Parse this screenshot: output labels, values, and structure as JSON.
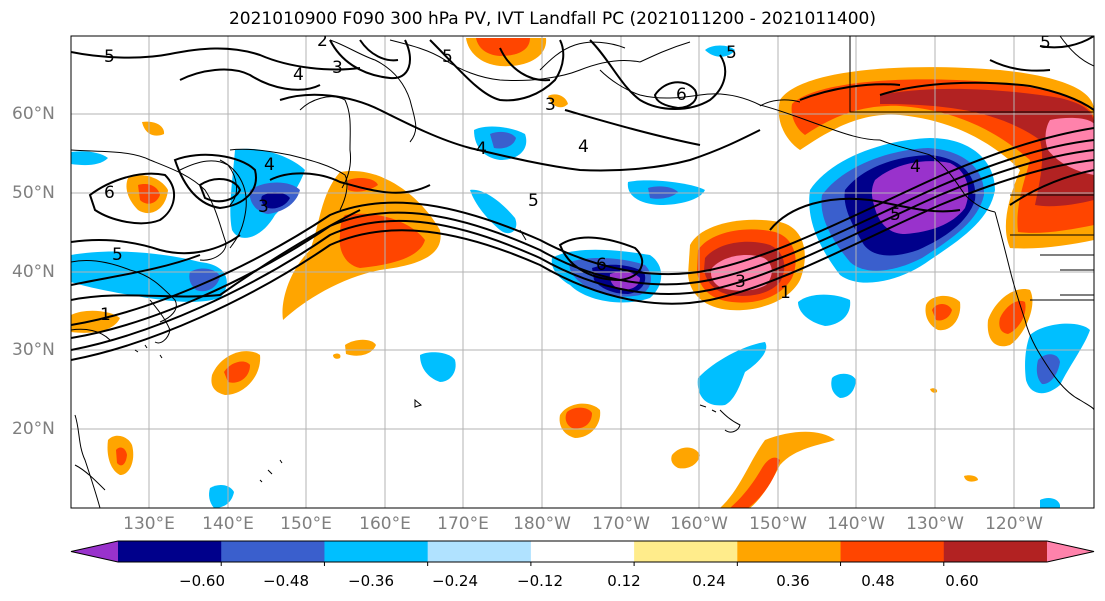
{
  "title": "2021010900 F090 300 hPa PV, IVT Landfall PC (2021011200 - 2021011400)",
  "longitude_labels": [
    "130°E",
    "140°E",
    "150°E",
    "160°E",
    "170°E",
    "180°W",
    "170°W",
    "160°W",
    "150°W",
    "140°W",
    "130°W",
    "120°W"
  ],
  "latitude_labels": [
    "60°N",
    "50°N",
    "40°N",
    "30°N",
    "20°N"
  ],
  "colorbar": {
    "tick_labels": [
      "−0.60",
      "−0.48",
      "−0.36",
      "−0.24",
      "−0.12",
      "0.12",
      "0.24",
      "0.36",
      "0.48",
      "0.60"
    ],
    "colors": [
      "#9932cc",
      "#00008b",
      "#3a5fcd",
      "#00bfff",
      "#b0e2ff",
      "#ffffff",
      "#ffec8b",
      "#ffa500",
      "#ff4500",
      "#b22222",
      "#ff82ab"
    ]
  },
  "contour_labels": [
    "5",
    "2",
    "3",
    "4",
    "5",
    "3",
    "4",
    "6",
    "5",
    "5",
    "3",
    "4",
    "6",
    "4",
    "5",
    "1",
    "4",
    "5",
    "6",
    "3",
    "1",
    "5"
  ],
  "colors": {
    "land_outline": "#000000",
    "grid": "#b3b3b3",
    "axis_text": "#7f7f7f"
  }
}
